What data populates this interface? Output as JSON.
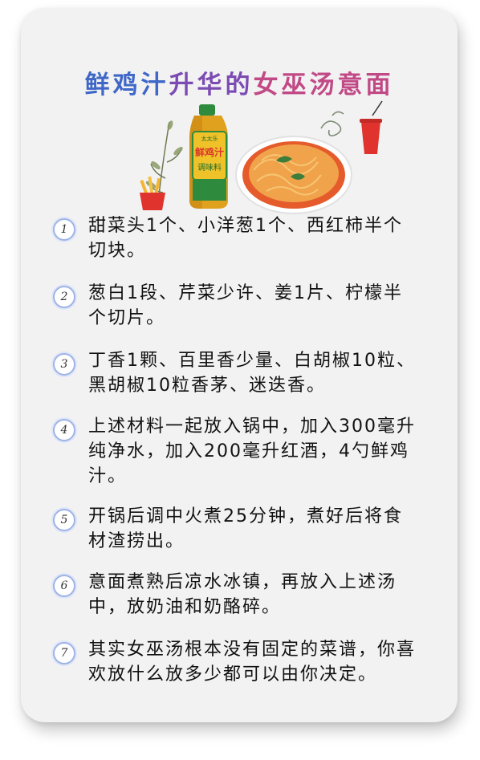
{
  "title": {
    "part1": "鲜鸡汁",
    "part2": "升华的",
    "part3": "女巫汤意面"
  },
  "steps": [
    {
      "num": "1",
      "text": "甜菜头1个、小洋葱1个、西红柿半个切块。"
    },
    {
      "num": "2",
      "text": "葱白1段、芹菜少许、姜1片、柠檬半个切片。"
    },
    {
      "num": "3",
      "text": "丁香1颗、百里香少量、白胡椒10粒、黑胡椒10粒香茅、迷迭香。"
    },
    {
      "num": "4",
      "text": "上述材料一起放入锅中，加入300毫升纯净水，加入200毫升红酒，4勺鲜鸡汁。"
    },
    {
      "num": "5",
      "text": "开锅后调中火煮25分钟，煮好后将食材渣捞出。"
    },
    {
      "num": "6",
      "text": "意面煮熟后凉水冰镇，再放入上述汤中，放奶油和奶酪碎。"
    },
    {
      "num": "7",
      "text": "其实女巫汤根本没有固定的菜谱，你喜欢放什么放多少都可以由你决定。"
    }
  ],
  "illustration": {
    "bottle_label_top": "太太乐",
    "bottle_label_main": "鲜鸡汁",
    "bottle_label_sub": "调味料"
  }
}
